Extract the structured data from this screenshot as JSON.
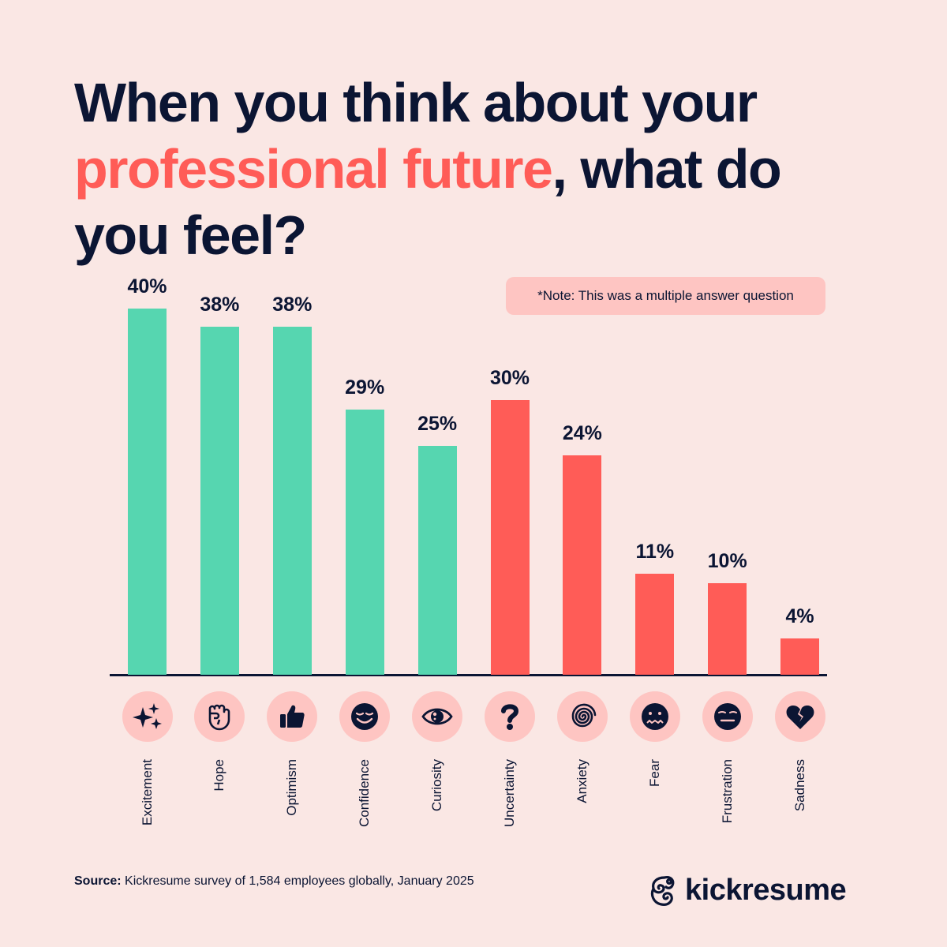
{
  "title": {
    "part1": "When you think about your",
    "accent": "professional future",
    "part2": ", what do you feel?"
  },
  "note": "*Note: This was a multiple answer question",
  "colors": {
    "background": "#fae7e4",
    "positive": "#56d6b0",
    "negative": "#ff5c57",
    "text": "#0b1533",
    "icon_bg": "#fec5c2"
  },
  "chart_data": {
    "type": "bar",
    "title": "When you think about your professional future, what do you feel?",
    "xlabel": "",
    "ylabel": "",
    "ylim": [
      0,
      40
    ],
    "grid": false,
    "categories": [
      "Excitement",
      "Hope",
      "Optimism",
      "Confidence",
      "Curiosity",
      "Uncertainty",
      "Anxiety",
      "Fear",
      "Frustration",
      "Sadness"
    ],
    "values": [
      40,
      38,
      38,
      29,
      25,
      30,
      24,
      11,
      10,
      4
    ],
    "labels": [
      "40%",
      "38%",
      "38%",
      "29%",
      "25%",
      "30%",
      "24%",
      "11%",
      "10%",
      "4%"
    ],
    "sentiment": [
      "positive",
      "positive",
      "positive",
      "positive",
      "positive",
      "negative",
      "negative",
      "negative",
      "negative",
      "negative"
    ],
    "icons": [
      "sparkles-icon",
      "raised-fist-icon",
      "thumbs-up-icon",
      "relieved-face-icon",
      "eye-icon",
      "question-mark-icon",
      "spiral-icon",
      "fearful-face-icon",
      "expressionless-face-icon",
      "broken-heart-icon"
    ],
    "annotation": "*Note: This was a multiple answer question"
  },
  "source": {
    "label": "Source:",
    "text": " Kickresume survey of 1,584 employees globally, January 2025"
  },
  "brand": {
    "name": "kickresume"
  }
}
